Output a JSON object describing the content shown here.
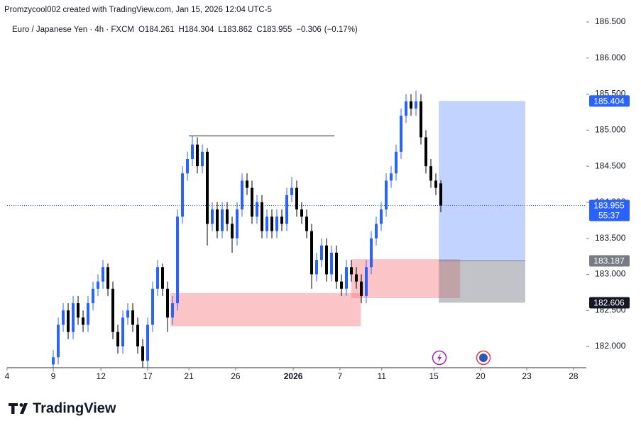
{
  "header": {
    "attribution": "Promzycool002 created with TradingView.com, Jan 15, 2026 12:04 UTC-5",
    "brand": "TradingView"
  },
  "chart_data": {
    "type": "candlestick",
    "title": "Euro / Japanese Yen · 4h · FXCM",
    "ohlc_legend": [
      {
        "label": "O",
        "value": 184.261
      },
      {
        "label": "H",
        "value": 184.304
      },
      {
        "label": "L",
        "value": 183.862
      },
      {
        "label": "C",
        "value": 183.955
      }
    ],
    "change": {
      "value": -0.306,
      "label": "−0.306"
    },
    "change_pct": {
      "value": -0.17,
      "label": "(−0.17%)"
    },
    "up_color": "#2962ff",
    "down_color": "#000000",
    "open": [
      181.75,
      181.85,
      182.3,
      182.5,
      182.2,
      182.6,
      182.4,
      182.3,
      182.6,
      182.8,
      182.9,
      183.1,
      182.8,
      182.2,
      182.0,
      182.4,
      182.5,
      182.3,
      182.0,
      181.8,
      182.3,
      182.8,
      183.1,
      182.8,
      182.4,
      182.6,
      183.8,
      184.4,
      184.6,
      184.8,
      184.5,
      184.7,
      183.7,
      183.9,
      183.6,
      183.9,
      183.7,
      183.5,
      183.9,
      184.3,
      184.2,
      183.8,
      184.0,
      183.6,
      183.8,
      183.6,
      183.8,
      183.7,
      184.1,
      184.2,
      183.9,
      183.8,
      183.6,
      183.0,
      183.2,
      183.4,
      183.0,
      183.3,
      182.9,
      182.8,
      183.1,
      183.0,
      182.9,
      182.7,
      183.1,
      183.5,
      183.7,
      183.9,
      184.3,
      184.4,
      184.7,
      185.2,
      185.4,
      185.3,
      185.4,
      184.9,
      184.5,
      184.3,
      184.261
    ],
    "high": [
      181.95,
      182.4,
      182.6,
      182.6,
      182.7,
      182.7,
      182.5,
      182.7,
      182.9,
      183.0,
      183.2,
      183.15,
      182.9,
      182.3,
      182.5,
      182.6,
      182.6,
      182.4,
      182.1,
      182.4,
      182.9,
      183.2,
      183.15,
      182.9,
      182.7,
      183.9,
      184.5,
      184.7,
      184.92,
      184.9,
      184.8,
      184.75,
      184.0,
      184.0,
      184.0,
      184.0,
      183.8,
      184.0,
      184.4,
      184.4,
      184.3,
      184.1,
      184.1,
      183.9,
      183.9,
      183.9,
      183.9,
      184.2,
      184.35,
      184.3,
      184.0,
      183.9,
      183.7,
      183.3,
      183.5,
      183.5,
      183.4,
      183.4,
      183.0,
      183.2,
      183.2,
      183.1,
      183.0,
      183.2,
      183.6,
      183.8,
      184.0,
      184.4,
      184.5,
      184.8,
      185.3,
      185.5,
      185.5,
      185.55,
      185.5,
      185.0,
      184.6,
      184.4,
      184.304
    ],
    "low": [
      181.65,
      181.75,
      182.2,
      182.1,
      182.1,
      182.3,
      182.2,
      182.2,
      182.5,
      182.7,
      182.8,
      182.7,
      182.1,
      181.9,
      181.9,
      182.3,
      182.2,
      181.9,
      181.7,
      181.7,
      182.2,
      182.7,
      182.7,
      182.2,
      182.3,
      182.5,
      183.7,
      184.3,
      184.5,
      184.4,
      184.4,
      183.4,
      183.6,
      183.5,
      183.5,
      183.6,
      183.3,
      183.4,
      183.8,
      184.1,
      183.7,
      183.7,
      183.5,
      183.5,
      183.5,
      183.5,
      183.6,
      183.6,
      184.0,
      183.8,
      183.7,
      183.5,
      182.8,
      182.9,
      183.1,
      182.9,
      182.9,
      182.8,
      182.7,
      182.7,
      182.9,
      182.8,
      182.6,
      182.6,
      183.0,
      183.4,
      183.6,
      183.8,
      184.2,
      184.3,
      184.6,
      185.1,
      185.2,
      185.2,
      184.8,
      184.4,
      184.2,
      184.1,
      183.862
    ],
    "close": [
      181.85,
      182.3,
      182.5,
      182.2,
      182.6,
      182.4,
      182.3,
      182.6,
      182.8,
      182.9,
      183.1,
      182.8,
      182.2,
      182.0,
      182.4,
      182.5,
      182.3,
      182.0,
      181.8,
      182.3,
      182.8,
      183.1,
      182.8,
      182.4,
      182.6,
      183.8,
      184.4,
      184.6,
      184.8,
      184.5,
      184.7,
      183.7,
      183.9,
      183.6,
      183.9,
      183.7,
      183.5,
      183.9,
      184.3,
      184.2,
      183.8,
      184.0,
      183.6,
      183.8,
      183.6,
      183.8,
      183.7,
      184.1,
      184.2,
      183.9,
      183.8,
      183.6,
      183.0,
      183.2,
      183.4,
      183.0,
      183.3,
      182.9,
      182.8,
      183.1,
      183.0,
      182.9,
      182.7,
      183.1,
      183.5,
      183.7,
      183.9,
      184.3,
      184.4,
      184.7,
      185.2,
      185.4,
      185.3,
      185.4,
      184.9,
      184.5,
      184.3,
      184.2,
      183.955
    ],
    "xlim": [
      -9.29,
      107.29
    ],
    "xticks": [
      {
        "value": -9.3,
        "label": "4"
      },
      {
        "value": 0,
        "label": "9"
      },
      {
        "value": 9.6,
        "label": "12"
      },
      {
        "value": 19,
        "label": "17"
      },
      {
        "value": 27.3,
        "label": "21"
      },
      {
        "value": 36.7,
        "label": "26"
      },
      {
        "value": 48.3,
        "label": "2026"
      },
      {
        "value": 57.7,
        "label": "7"
      },
      {
        "value": 66.1,
        "label": "11"
      },
      {
        "value": 76.6,
        "label": "15"
      },
      {
        "value": 86,
        "label": "20"
      },
      {
        "value": 95.3,
        "label": "23"
      },
      {
        "value": 104.7,
        "label": "28"
      }
    ],
    "ylim": [
      181.705,
      186.805
    ],
    "yticks": [
      {
        "value": 182,
        "label": "182.000"
      },
      {
        "value": 182.5,
        "label": "182.500"
      },
      {
        "value": 183,
        "label": "183.000"
      },
      {
        "value": 183.5,
        "label": "183.500"
      },
      {
        "value": 184,
        "label": "184.000"
      },
      {
        "value": 184.5,
        "label": "184.500"
      },
      {
        "value": 185,
        "label": "185.000"
      },
      {
        "value": 185.5,
        "label": "185.500"
      },
      {
        "value": 186,
        "label": "186.000"
      },
      {
        "value": 186.5,
        "label": "186.500"
      }
    ],
    "resistance": {
      "price": 184.92,
      "x_start": 27.3,
      "x_end": 56.6
    },
    "zones": [
      {
        "top": 182.74,
        "bottom": 182.28,
        "x_start": 23.6,
        "x_end": 61.9
      },
      {
        "top": 183.21,
        "bottom": 182.67,
        "x_start": 60,
        "x_end": 81.9
      }
    ],
    "position": {
      "target": 185.404,
      "entry": 183.187,
      "stop": 182.606,
      "x_start": 77.6,
      "x_end": 95
    },
    "last_price": 183.955,
    "countdown": "55:37"
  }
}
